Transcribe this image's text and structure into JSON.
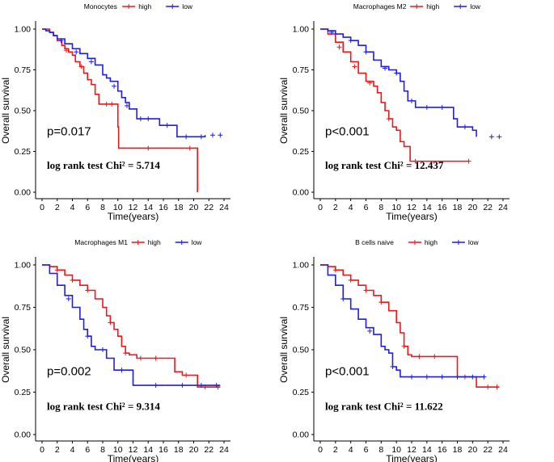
{
  "colors": {
    "high": "#e41a1c",
    "low": "#1f1fdd"
  },
  "chart_data": [
    {
      "type": "line",
      "title": "Monocytes",
      "legend": [
        "high",
        "low"
      ],
      "xlabel": "Time(years)",
      "ylabel": "Overall survival",
      "xlim": [
        0,
        24
      ],
      "ylim": [
        0,
        1
      ],
      "xticks": [
        "0",
        "2",
        "4",
        "6",
        "8",
        "10",
        "12",
        "14",
        "16",
        "18",
        "20",
        "22",
        "24"
      ],
      "yticks": [
        "0.00",
        "0.25",
        "0.50",
        "0.75",
        "1.00"
      ],
      "pvalue": "p=0.017",
      "chi_text": "log rank test Chi² = 5.714",
      "series": [
        {
          "name": "high",
          "color": "high",
          "x": [
            0,
            1,
            1.5,
            2,
            2.6,
            3,
            3.5,
            4,
            4.4,
            5,
            5.5,
            6,
            6.5,
            7,
            7.5,
            8,
            10,
            10.1,
            20.5
          ],
          "y": [
            1,
            0.98,
            0.96,
            0.93,
            0.9,
            0.88,
            0.86,
            0.84,
            0.8,
            0.77,
            0.73,
            0.69,
            0.66,
            0.6,
            0.54,
            0.54,
            0.4,
            0.27,
            0
          ],
          "censor": [
            [
              3.2,
              0.87
            ],
            [
              5.2,
              0.77
            ],
            [
              8.5,
              0.54
            ],
            [
              9.2,
              0.54
            ],
            [
              14,
              0.27
            ],
            [
              19.5,
              0.27
            ]
          ]
        },
        {
          "name": "low",
          "color": "low",
          "x": [
            0,
            0.5,
            1,
            1.5,
            2,
            3,
            4,
            5,
            6,
            7,
            8,
            8.5,
            9,
            10,
            10.5,
            11,
            11.5,
            12.5,
            15.5,
            17.8,
            21.5
          ],
          "y": [
            1,
            0.99,
            0.98,
            0.96,
            0.94,
            0.91,
            0.88,
            0.85,
            0.82,
            0.78,
            0.72,
            0.7,
            0.68,
            0.62,
            0.58,
            0.55,
            0.51,
            0.45,
            0.41,
            0.34,
            0.35
          ],
          "censor": [
            [
              2.5,
              0.93
            ],
            [
              4.5,
              0.86
            ],
            [
              6.5,
              0.8
            ],
            [
              9.5,
              0.65
            ],
            [
              11.2,
              0.53
            ],
            [
              13,
              0.45
            ],
            [
              14,
              0.45
            ],
            [
              16.5,
              0.41
            ],
            [
              19,
              0.34
            ],
            [
              21,
              0.34
            ],
            [
              22.5,
              0.35
            ],
            [
              23.5,
              0.35
            ]
          ]
        }
      ]
    },
    {
      "type": "line",
      "title": "Macrophages M2",
      "legend": [
        "high",
        "low"
      ],
      "xlabel": "Time(years)",
      "ylabel": "Overall survival",
      "xlim": [
        0,
        24
      ],
      "ylim": [
        0,
        1
      ],
      "xticks": [
        "0",
        "2",
        "4",
        "6",
        "8",
        "10",
        "12",
        "14",
        "16",
        "18",
        "20",
        "22",
        "24"
      ],
      "yticks": [
        "0.00",
        "0.25",
        "0.50",
        "0.75",
        "1.00"
      ],
      "pvalue": "p<0.001",
      "chi_text": "log rank test Chi² = 12.437",
      "series": [
        {
          "name": "high",
          "color": "high",
          "x": [
            0,
            1,
            2,
            3,
            4,
            5,
            6,
            7,
            7.5,
            8,
            8.5,
            9,
            9.5,
            10,
            10.5,
            11,
            11.8,
            19.5
          ],
          "y": [
            1,
            0.97,
            0.92,
            0.86,
            0.8,
            0.73,
            0.68,
            0.65,
            0.61,
            0.55,
            0.5,
            0.45,
            0.4,
            0.38,
            0.31,
            0.28,
            0.19,
            0.19
          ],
          "censor": [
            [
              2.5,
              0.89
            ],
            [
              4.5,
              0.77
            ],
            [
              6.5,
              0.67
            ],
            [
              9,
              0.45
            ],
            [
              12.5,
              0.19
            ],
            [
              19.5,
              0.19
            ]
          ]
        },
        {
          "name": "low",
          "color": "low",
          "x": [
            0,
            1,
            2,
            3,
            4,
            5,
            6,
            7,
            8,
            9,
            10,
            10.5,
            11,
            11.5,
            12.5,
            15.5,
            17.5,
            18,
            20,
            20.5
          ],
          "y": [
            1,
            0.99,
            0.97,
            0.95,
            0.93,
            0.9,
            0.86,
            0.81,
            0.77,
            0.75,
            0.73,
            0.68,
            0.62,
            0.56,
            0.52,
            0.52,
            0.45,
            0.4,
            0.38,
            0.34
          ],
          "censor": [
            [
              1.5,
              0.98
            ],
            [
              4,
              0.93
            ],
            [
              6,
              0.86
            ],
            [
              8.5,
              0.76
            ],
            [
              10,
              0.73
            ],
            [
              12,
              0.56
            ],
            [
              14,
              0.52
            ],
            [
              16,
              0.52
            ],
            [
              19,
              0.4
            ],
            [
              22.5,
              0.34
            ],
            [
              23.5,
              0.34
            ]
          ]
        }
      ]
    },
    {
      "type": "line",
      "title": "Macrophages M1",
      "legend": [
        "high",
        "low"
      ],
      "xlabel": "Time(years)",
      "ylabel": "Overall survival",
      "xlim": [
        0,
        24
      ],
      "ylim": [
        0,
        1
      ],
      "xticks": [
        "0",
        "2",
        "4",
        "6",
        "8",
        "10",
        "12",
        "14",
        "16",
        "18",
        "20",
        "22",
        "24"
      ],
      "yticks": [
        "0.00",
        "0.25",
        "0.50",
        "0.75",
        "1.00"
      ],
      "pvalue": "p=0.002",
      "chi_text": "log rank test Chi² = 9.314",
      "series": [
        {
          "name": "high",
          "color": "high",
          "x": [
            0,
            1,
            2,
            3,
            4,
            5,
            6,
            7,
            8,
            8.5,
            9,
            9.5,
            10,
            10.5,
            11,
            11.5,
            12.5,
            17.5,
            18.5,
            20.5,
            23.5
          ],
          "y": [
            1,
            0.99,
            0.97,
            0.94,
            0.91,
            0.88,
            0.85,
            0.8,
            0.75,
            0.7,
            0.66,
            0.62,
            0.58,
            0.52,
            0.48,
            0.47,
            0.45,
            0.37,
            0.35,
            0.28,
            0.28
          ],
          "censor": [
            [
              2,
              0.97
            ],
            [
              4,
              0.91
            ],
            [
              6,
              0.85
            ],
            [
              9,
              0.66
            ],
            [
              11,
              0.48
            ],
            [
              13,
              0.45
            ],
            [
              15,
              0.45
            ],
            [
              19,
              0.35
            ],
            [
              21.5,
              0.28
            ],
            [
              23.2,
              0.28
            ]
          ]
        },
        {
          "name": "low",
          "color": "low",
          "x": [
            0,
            1,
            2,
            3,
            4,
            5,
            5.5,
            6,
            6.5,
            7,
            7.5,
            8.5,
            9,
            9.5,
            10,
            12,
            23.5
          ],
          "y": [
            1,
            0.95,
            0.88,
            0.82,
            0.75,
            0.68,
            0.62,
            0.58,
            0.52,
            0.5,
            0.5,
            0.45,
            0.45,
            0.38,
            0.38,
            0.29,
            0.29
          ],
          "censor": [
            [
              3.5,
              0.8
            ],
            [
              6,
              0.58
            ],
            [
              8,
              0.5
            ],
            [
              10.5,
              0.38
            ],
            [
              15,
              0.29
            ],
            [
              18.5,
              0.29
            ],
            [
              21,
              0.29
            ],
            [
              23,
              0.29
            ]
          ]
        }
      ]
    },
    {
      "type": "line",
      "title": "B cells naive",
      "legend": [
        "high",
        "low"
      ],
      "xlabel": "Time(years)",
      "ylabel": "Overall survival",
      "xlim": [
        0,
        24
      ],
      "ylim": [
        0,
        1
      ],
      "xticks": [
        "0",
        "2",
        "4",
        "6",
        "8",
        "10",
        "12",
        "14",
        "16",
        "18",
        "20",
        "22",
        "24"
      ],
      "yticks": [
        "0.00",
        "0.25",
        "0.50",
        "0.75",
        "1.00"
      ],
      "pvalue": "p<0.001",
      "chi_text": "log rank test Chi² = 11.622",
      "series": [
        {
          "name": "high",
          "color": "high",
          "x": [
            0,
            1,
            2,
            3,
            4,
            5,
            6,
            7,
            8,
            9,
            10,
            10.5,
            11,
            11.5,
            12,
            17.5,
            18,
            20.5,
            23.5
          ],
          "y": [
            1,
            0.99,
            0.97,
            0.94,
            0.91,
            0.88,
            0.85,
            0.82,
            0.78,
            0.73,
            0.66,
            0.6,
            0.52,
            0.47,
            0.46,
            0.46,
            0.34,
            0.28,
            0.28
          ],
          "censor": [
            [
              2,
              0.97
            ],
            [
              4,
              0.91
            ],
            [
              6,
              0.85
            ],
            [
              8,
              0.78
            ],
            [
              11,
              0.52
            ],
            [
              13,
              0.46
            ],
            [
              15,
              0.46
            ],
            [
              19,
              0.34
            ],
            [
              22,
              0.28
            ],
            [
              23.2,
              0.28
            ]
          ]
        },
        {
          "name": "low",
          "color": "low",
          "x": [
            0,
            1,
            2,
            3,
            4,
            5,
            6,
            7,
            8,
            8.5,
            9,
            9.5,
            10,
            10.5,
            21.5
          ],
          "y": [
            1,
            0.94,
            0.88,
            0.8,
            0.74,
            0.68,
            0.63,
            0.59,
            0.52,
            0.5,
            0.48,
            0.4,
            0.38,
            0.34,
            0.34
          ],
          "censor": [
            [
              3,
              0.8
            ],
            [
              6.5,
              0.61
            ],
            [
              9.5,
              0.4
            ],
            [
              12,
              0.34
            ],
            [
              14,
              0.34
            ],
            [
              16,
              0.34
            ],
            [
              18,
              0.34
            ],
            [
              20,
              0.34
            ],
            [
              21.5,
              0.34
            ]
          ]
        }
      ]
    }
  ]
}
